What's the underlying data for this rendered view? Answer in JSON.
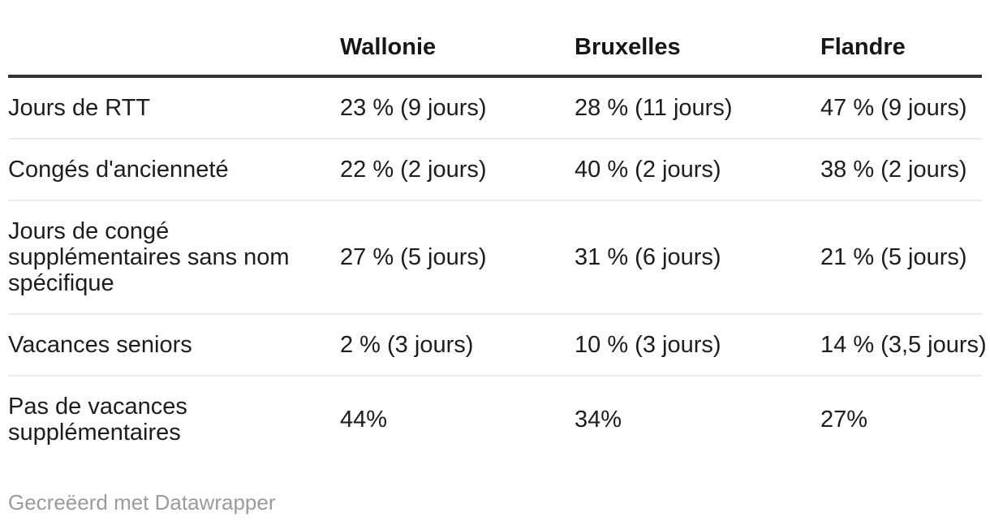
{
  "chart_data": {
    "type": "table",
    "columns": [
      "",
      "Wallonie",
      "Bruxelles",
      "Flandre"
    ],
    "rows": [
      {
        "label": "Jours de RTT",
        "cells": [
          "23 % (9 jours)",
          "28 % (11 jours)",
          "47 % (9 jours)"
        ]
      },
      {
        "label": "Congés d'ancienneté",
        "cells": [
          "22 % (2 jours)",
          "40 % (2 jours)",
          "38 % (2 jours)"
        ]
      },
      {
        "label": "Jours de congé supplémentaires sans nom spécifique",
        "cells": [
          "27 % (5 jours)",
          "31 % (6 jours)",
          "21 % (5 jours)"
        ]
      },
      {
        "label": "Vacances seniors",
        "cells": [
          "2 % (3 jours)",
          "10 % (3 jours)",
          "14 % (3,5 jours)"
        ]
      },
      {
        "label": "Pas de vacances supplémentaires",
        "cells": [
          "44%",
          "34%",
          "27%"
        ]
      }
    ],
    "values_numeric": {
      "categories": [
        "Jours de RTT",
        "Congés d'ancienneté",
        "Jours de congé supplémentaires sans nom spécifique",
        "Vacances seniors",
        "Pas de vacances supplémentaires"
      ],
      "series": [
        {
          "name": "Wallonie",
          "percent": [
            23,
            22,
            27,
            2,
            44
          ],
          "jours": [
            9,
            2,
            5,
            3,
            null
          ]
        },
        {
          "name": "Bruxelles",
          "percent": [
            28,
            40,
            31,
            10,
            34
          ],
          "jours": [
            11,
            2,
            6,
            3,
            null
          ]
        },
        {
          "name": "Flandre",
          "percent": [
            47,
            38,
            21,
            14,
            27
          ],
          "jours": [
            9,
            2,
            5,
            3.5,
            null
          ]
        }
      ]
    },
    "layout": {
      "header_rule": true,
      "row_rules": true,
      "grid": "horizontal-only"
    }
  },
  "footer": {
    "attribution": "Gecreëerd met Datawrapper"
  },
  "style": {
    "background": "#ffffff",
    "text_color": "#1d1d1d",
    "header_text_color": "#161616",
    "header_rule_color": "#333333",
    "row_rule_color": "#ebebeb",
    "muted_text_color": "#9b9b9b"
  }
}
